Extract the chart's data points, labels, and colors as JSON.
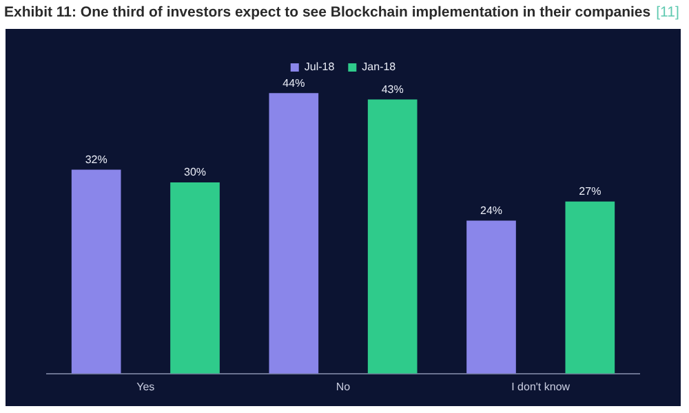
{
  "chart_data": {
    "type": "bar",
    "title": "Exhibit 11: One third of investors expect to see Blockchain implementation in their companies",
    "annotations": [
      "[11]"
    ],
    "categories": [
      "Yes",
      "No",
      "I don't know"
    ],
    "series": [
      {
        "name": "Jul-18",
        "color": "#8a86ea",
        "values": [
          32,
          44,
          24
        ],
        "value_labels": [
          "32%",
          "44%",
          "24%"
        ]
      },
      {
        "name": "Jan-18",
        "color": "#2fcb8b",
        "values": [
          30,
          43,
          27
        ],
        "value_labels": [
          "30%",
          "43%",
          "27%"
        ]
      }
    ],
    "tick_labels": "x",
    "grid": false,
    "legend": "top"
  }
}
